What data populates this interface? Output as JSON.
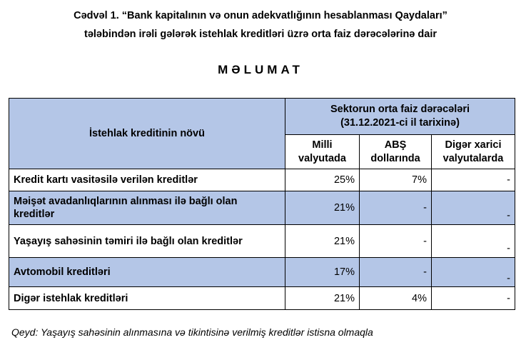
{
  "heading": {
    "line1": "Cədvəl 1. “Bank kapitalının və onun adekvatlığının hesablanması Qaydaları”",
    "line2": "tələbindən irəli gələrək istehlak kreditləri üzrə orta faiz dərəcələrinə dair",
    "title": "MƏLUMAT"
  },
  "table": {
    "col_type": "İstehlak kreditinin növü",
    "group_header_1": "Sektorun orta faiz dərəcələri",
    "group_header_2": "(31.12.2021-ci il tarixinə)",
    "cols": [
      {
        "l1": "Milli",
        "l2": "valyutada"
      },
      {
        "l1": "ABŞ",
        "l2": "dollarında"
      },
      {
        "l1": "Digər xarici",
        "l2": "valyutalarda"
      }
    ],
    "rows": [
      {
        "name": "Kredit kartı vasitəsilə verilən kreditlər",
        "national": "25%",
        "usd": "7%",
        "other": "-"
      },
      {
        "name": "Məişət avadanlıqlarının alınması ilə bağlı olan kreditlər",
        "national": "21%",
        "usd": "-",
        "other": "-"
      },
      {
        "name": "Yaşayış sahəsinin təmiri ilə bağlı olan kreditlər",
        "national": "21%",
        "usd": "-",
        "other": "-"
      },
      {
        "name": "Avtomobil kreditləri",
        "national": "17%",
        "usd": "-",
        "other": "-"
      },
      {
        "name": "Digər istehlak kreditləri",
        "national": "21%",
        "usd": "4%",
        "other": "-"
      }
    ]
  },
  "note": "Qeyd: Yaşayış sahəsinin alınmasına və tikintisinə verilmiş kreditlər istisna olmaqla",
  "colors": {
    "header_fill": "#b4c6e7"
  }
}
